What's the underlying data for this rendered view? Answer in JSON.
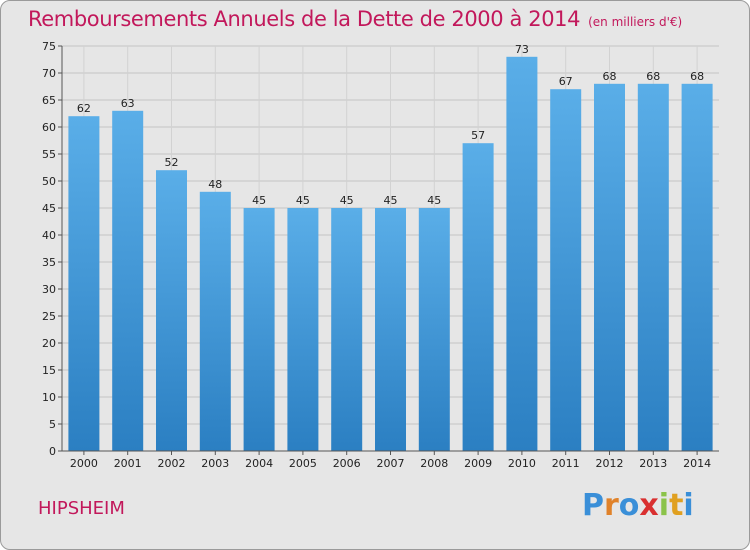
{
  "header": {
    "title": "Remboursements Annuels de la Dette de 2000 à 2014",
    "unit": "(en milliers d'€)"
  },
  "footer": {
    "commune": "HIPSHEIM",
    "logo": "Proxiti"
  },
  "colors": {
    "title": "#c2185b",
    "bar_top": "#5aaee8",
    "bar_bottom": "#2b7fc2",
    "background": "#e6e6e6"
  },
  "chart_data": {
    "type": "bar",
    "title": "Remboursements Annuels de la Dette de 2000 à 2014",
    "categories": [
      "2000",
      "2001",
      "2002",
      "2003",
      "2004",
      "2005",
      "2006",
      "2007",
      "2008",
      "2009",
      "2010",
      "2011",
      "2012",
      "2013",
      "2014"
    ],
    "values": [
      62,
      63,
      52,
      48,
      45,
      45,
      45,
      45,
      45,
      57,
      73,
      67,
      68,
      68,
      68
    ],
    "ylim": [
      0,
      75
    ],
    "yticks": [
      0,
      5,
      10,
      15,
      20,
      25,
      30,
      35,
      40,
      45,
      50,
      55,
      60,
      65,
      70,
      75
    ],
    "grid": true,
    "data_labels": true
  }
}
